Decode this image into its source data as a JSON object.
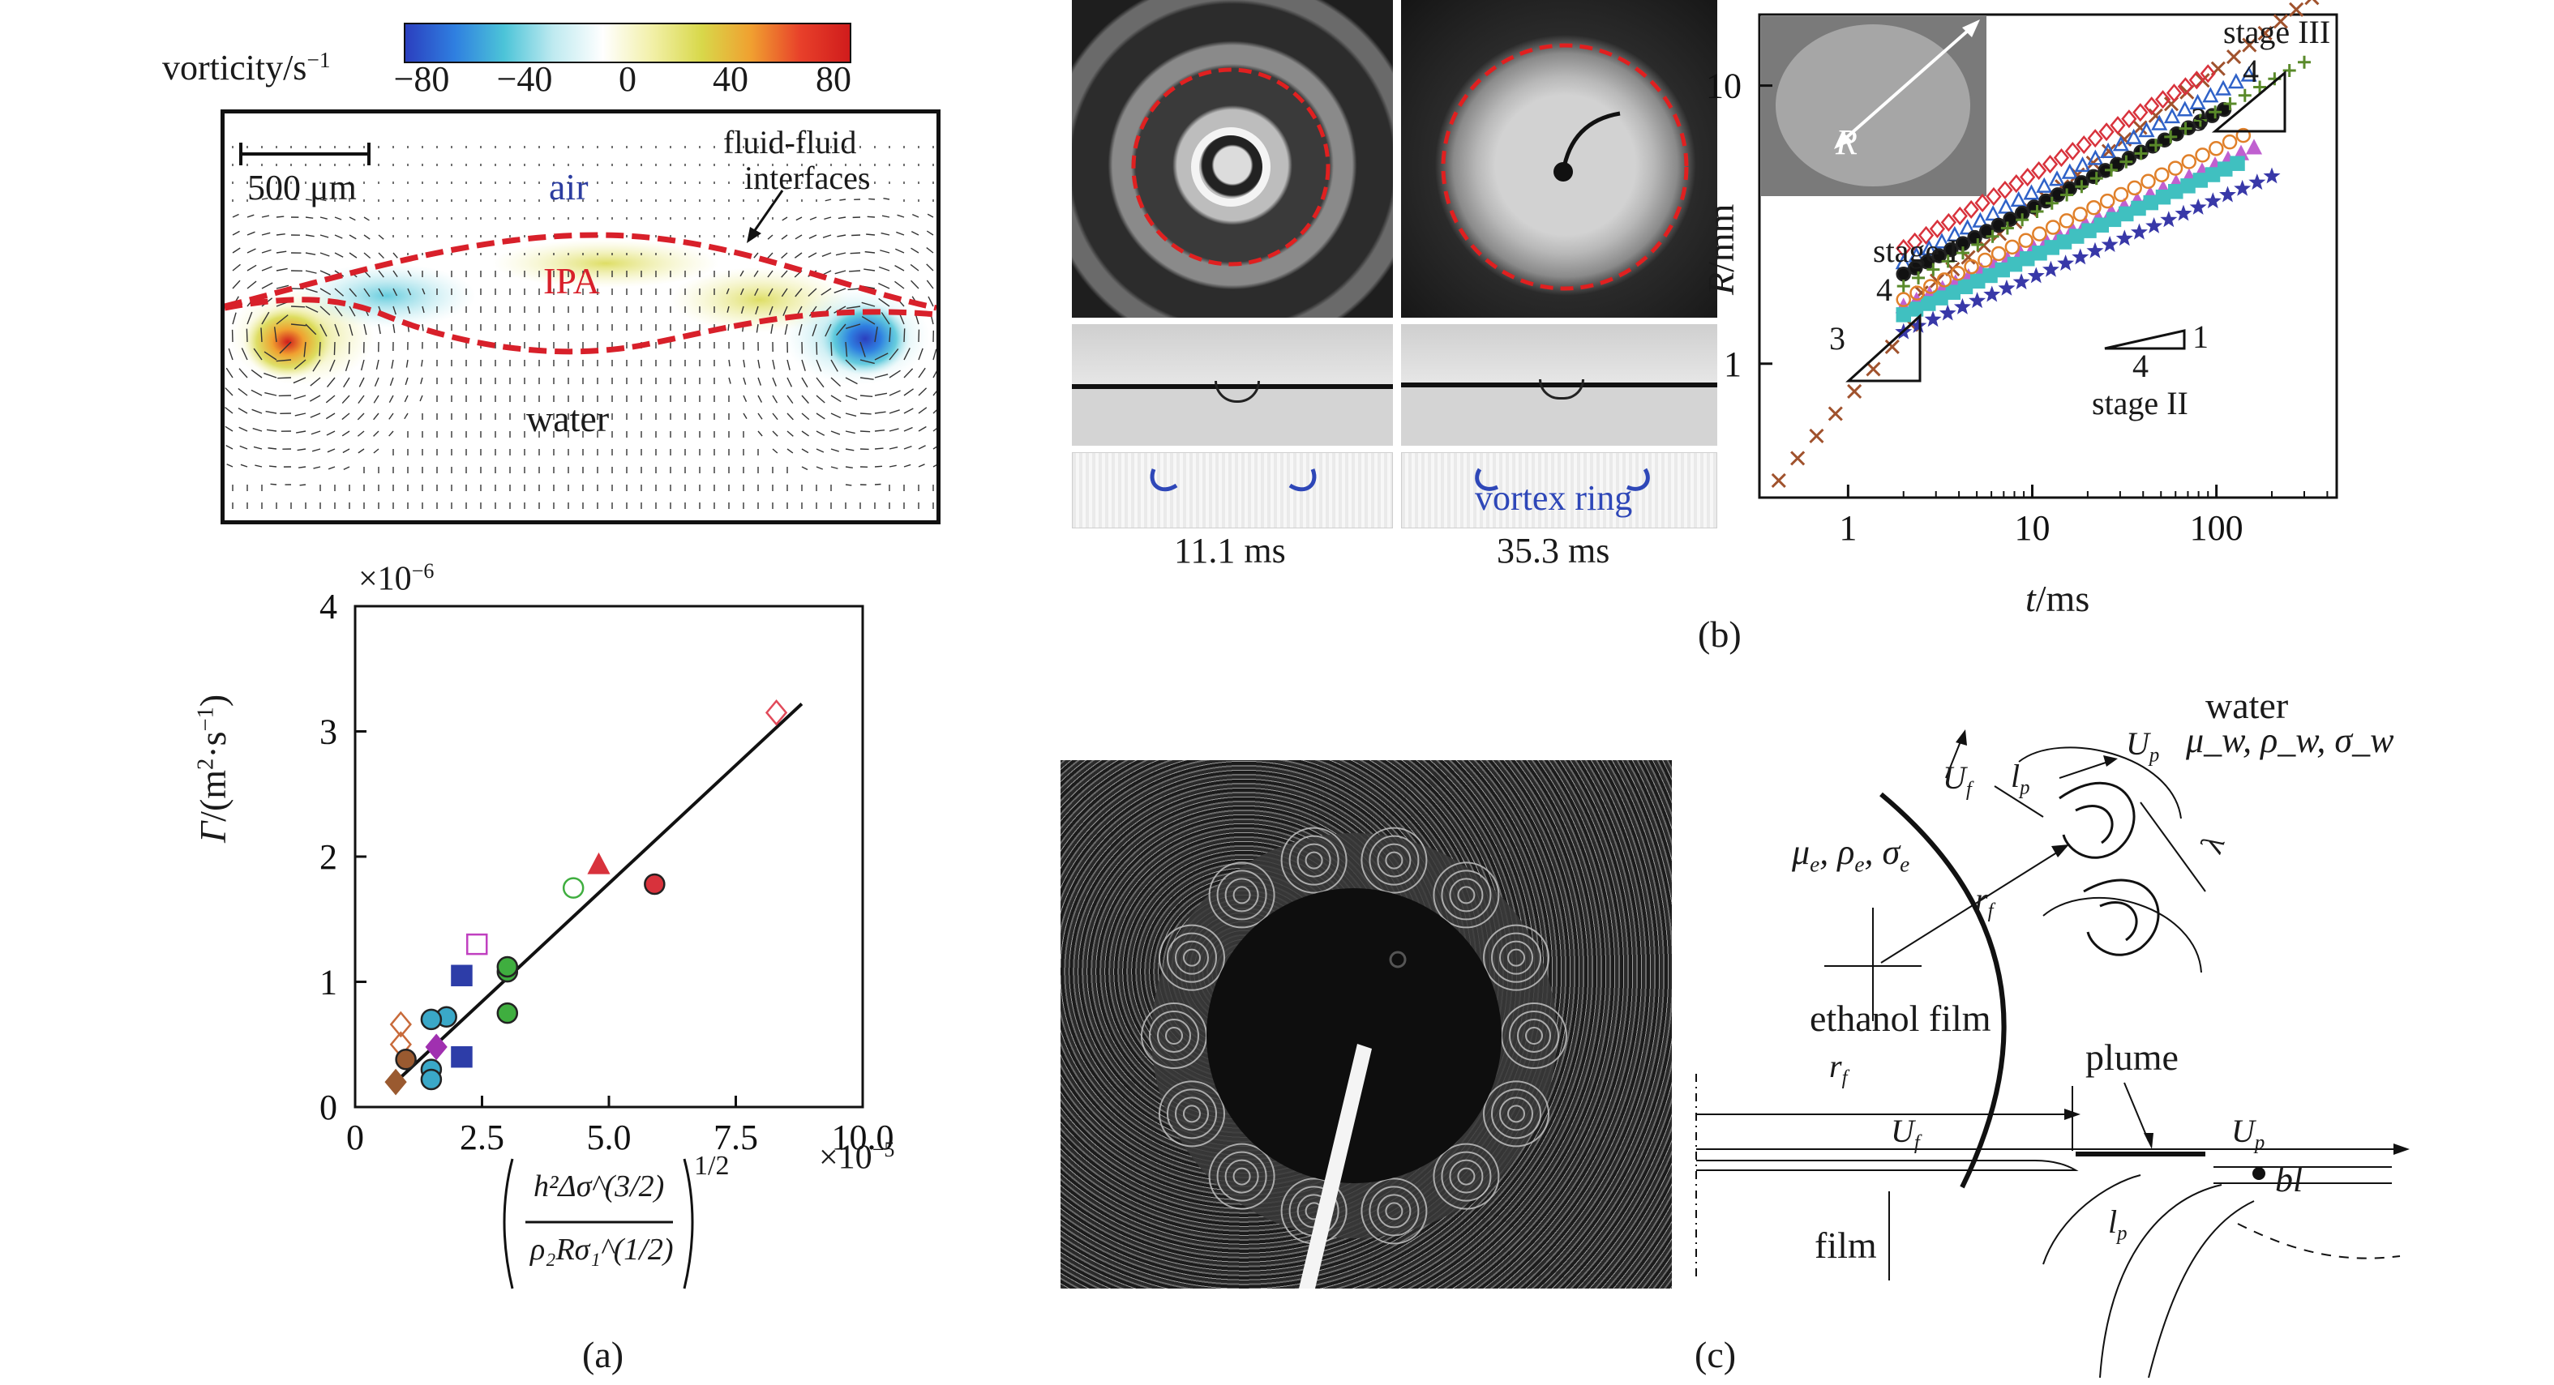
{
  "colorbar": {
    "label": "vorticity/s",
    "label_sup": "−1",
    "ticks": [
      "−80",
      "−40",
      "0",
      "40",
      "80"
    ],
    "colors": [
      "#2b3fbf",
      "#2f7fe0",
      "#4cc4d8",
      "#bfeaf0",
      "#ffffff",
      "#f2f0a8",
      "#d8d84a",
      "#f0a030",
      "#e8402a",
      "#d01c1c"
    ]
  },
  "panel_a_top": {
    "scale_label": "500 μm",
    "label_air": "air",
    "label_ipa": "IPA",
    "label_water": "water",
    "annot_line1": "fluid-fluid",
    "annot_line2": "interfaces"
  },
  "chart_data": [
    {
      "type": "scatter",
      "id": "circulation-vs-scaling",
      "title": "",
      "ylabel": "Γ/(m²·s⁻¹)",
      "ylabel_main": "Γ",
      "ylabel_unit": "/(m",
      "ylabel_sup1": "2",
      "ylabel_mid": "·s",
      "ylabel_sup2": "−1",
      "ylabel_end": ")",
      "y_multiplier": "×10",
      "y_multiplier_exp": "−6",
      "x_multiplier": "×10",
      "x_multiplier_exp": "−5",
      "xlabel_num": "h²Δσ^(3/2)",
      "xlabel_den": "ρ₂Rσ₁^(1/2)",
      "xlabel_pow": "1/2",
      "xlim": [
        0,
        10
      ],
      "ylim": [
        0,
        4
      ],
      "xticks": [
        "0",
        "2.5",
        "5.0",
        "7.5",
        "10.0"
      ],
      "yticks": [
        "0",
        "1",
        "2",
        "3",
        "4"
      ],
      "xtick_values": [
        0,
        2.5,
        5,
        7.5,
        10
      ],
      "ytick_values": [
        0,
        1,
        2,
        3,
        4
      ],
      "fit_line": {
        "x": [
          0.8,
          8.8
        ],
        "y": [
          0.2,
          3.22
        ]
      },
      "points": [
        {
          "x": 8.3,
          "y": 3.15,
          "marker": "diamond-open",
          "color": "#e24a5a"
        },
        {
          "x": 4.8,
          "y": 1.93,
          "marker": "triangle",
          "color": "#d8323c"
        },
        {
          "x": 4.3,
          "y": 1.75,
          "marker": "circle-open",
          "color": "#3fae3f"
        },
        {
          "x": 5.9,
          "y": 1.78,
          "marker": "circle",
          "color": "#d8323c"
        },
        {
          "x": 3.0,
          "y": 1.08,
          "marker": "circle",
          "color": "#3fae3f"
        },
        {
          "x": 3.0,
          "y": 1.12,
          "marker": "circle",
          "color": "#3fae3f"
        },
        {
          "x": 3.0,
          "y": 0.75,
          "marker": "circle",
          "color": "#3fae3f"
        },
        {
          "x": 2.4,
          "y": 1.3,
          "marker": "square-open",
          "color": "#c040c0"
        },
        {
          "x": 2.1,
          "y": 1.05,
          "marker": "square",
          "color": "#2d3da8"
        },
        {
          "x": 2.1,
          "y": 0.4,
          "marker": "square",
          "color": "#2d3da8"
        },
        {
          "x": 1.8,
          "y": 0.72,
          "marker": "circle",
          "color": "#3aa8c8"
        },
        {
          "x": 1.5,
          "y": 0.7,
          "marker": "circle",
          "color": "#3aa8c8"
        },
        {
          "x": 1.5,
          "y": 0.3,
          "marker": "circle",
          "color": "#3aa8c8"
        },
        {
          "x": 1.5,
          "y": 0.22,
          "marker": "circle",
          "color": "#3aa8c8"
        },
        {
          "x": 1.6,
          "y": 0.48,
          "marker": "diamond",
          "color": "#a030b0"
        },
        {
          "x": 0.9,
          "y": 0.66,
          "marker": "diamond-open",
          "color": "#c86a3a"
        },
        {
          "x": 0.9,
          "y": 0.5,
          "marker": "diamond-open",
          "color": "#c86a3a"
        },
        {
          "x": 1.0,
          "y": 0.38,
          "marker": "circle",
          "color": "#9a5a30"
        },
        {
          "x": 0.8,
          "y": 0.2,
          "marker": "diamond",
          "color": "#9a5a30"
        }
      ]
    },
    {
      "type": "scatter",
      "id": "radius-vs-time",
      "xscale": "log",
      "yscale": "log",
      "ylabel": "R/mm",
      "ylabel_main": "R",
      "ylabel_unit": "/mm",
      "xlabel": "t/ms",
      "xlabel_main": "t",
      "xlabel_unit": "/ms",
      "xlim": [
        0.33,
        450
      ],
      "ylim": [
        0.33,
        18
      ],
      "xticks": [
        "1",
        "10",
        "100"
      ],
      "yticks": [
        "1",
        "10"
      ],
      "xtick_values": [
        1,
        10,
        100
      ],
      "ytick_values": [
        1,
        10
      ],
      "inset_label": "R",
      "slope_annotations": [
        {
          "label": "stage I",
          "rise": "3",
          "run": "4"
        },
        {
          "label": "stage II",
          "rise": "1",
          "run": "4"
        },
        {
          "label": "stage III",
          "rise": "3",
          "run": "4"
        }
      ],
      "series": [
        {
          "marker": "x",
          "color": "#a0522d",
          "t0": 0.42,
          "r0": 0.38,
          "slope": 0.78,
          "n": 8,
          "t_end": 2.2
        },
        {
          "marker": "x",
          "color": "#a0522d",
          "t0": 2.5,
          "r0": 1.8,
          "slope": 0.5,
          "n": 26,
          "t_end": 330
        },
        {
          "marker": "diamond-open",
          "color": "#d8323c",
          "t0": 2.0,
          "r0": 2.6,
          "slope": 0.38,
          "n": 28,
          "t_end": 90
        },
        {
          "marker": "triangle-open",
          "color": "#2f62c8",
          "t0": 2.0,
          "r0": 2.3,
          "slope": 0.36,
          "n": 28,
          "t_end": 150
        },
        {
          "marker": "circle",
          "color": "#111111",
          "t0": 2.0,
          "r0": 2.1,
          "slope": 0.34,
          "n": 28,
          "t_end": 110
        },
        {
          "marker": "plus",
          "color": "#5a8a2a",
          "t0": 2.0,
          "r0": 1.9,
          "slope": 0.37,
          "n": 28,
          "t_end": 300
        },
        {
          "marker": "triangle",
          "color": "#c060d0",
          "t0": 2.0,
          "r0": 1.6,
          "slope": 0.3,
          "n": 28,
          "t_end": 160
        },
        {
          "marker": "square",
          "color": "#40c0c0",
          "t0": 2.0,
          "r0": 1.5,
          "slope": 0.3,
          "n": 28,
          "t_end": 130
        },
        {
          "marker": "star",
          "color": "#3838a8",
          "t0": 2.0,
          "r0": 1.3,
          "slope": 0.28,
          "n": 26,
          "t_end": 200
        },
        {
          "marker": "circle-open",
          "color": "#e0802a",
          "t0": 2.0,
          "r0": 1.7,
          "slope": 0.32,
          "n": 26,
          "t_end": 140
        }
      ]
    }
  ],
  "panel_b_photos": {
    "time_left": "11.1 ms",
    "time_right": "35.3 ms",
    "vortex_label": "vortex ring"
  },
  "panel_c_schematic": {
    "top_fluid": "water",
    "top_props": "μ_w, ρ_w, σ_w",
    "mu": "μ",
    "rho": "ρ",
    "sigma": "σ",
    "sub_w": "w",
    "sub_e": "e",
    "U": "U",
    "sub_f": "f",
    "sub_p": "p",
    "l": "l",
    "r": "r",
    "lam": "λ",
    "film_label": "ethanol film",
    "plume_label": "plume",
    "film_side_label": "film",
    "bl_label": "bl"
  },
  "labels": {
    "a": "(a)",
    "b": "(b)",
    "c": "(c)"
  }
}
